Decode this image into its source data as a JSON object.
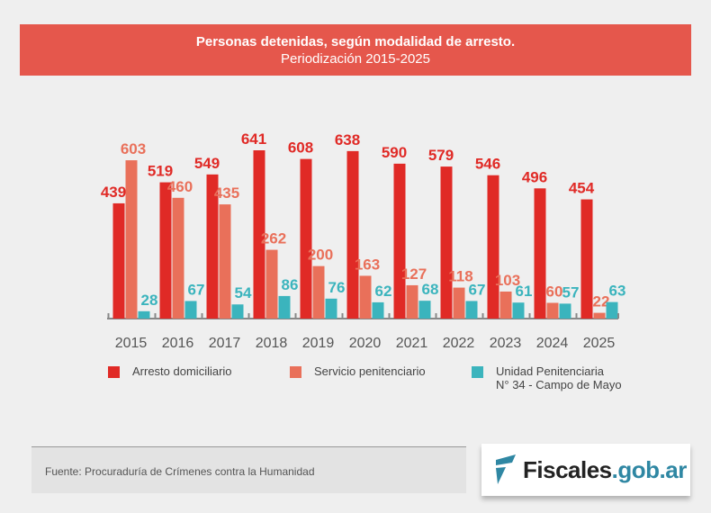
{
  "header": {
    "title": "Personas detenidas, según modalidad de arresto.",
    "subtitle": "Periodización 2015-2025"
  },
  "chart_data": {
    "type": "bar",
    "title": "Personas detenidas, según modalidad de arresto.",
    "subtitle": "Periodización 2015-2025",
    "categories": [
      "2015",
      "2016",
      "2017",
      "2018",
      "2019",
      "2020",
      "2021",
      "2022",
      "2023",
      "2024",
      "2025"
    ],
    "series": [
      {
        "name": "Arresto domiciliario",
        "color": "#e02a26",
        "values": [
          439,
          519,
          549,
          641,
          608,
          638,
          590,
          579,
          546,
          496,
          454
        ]
      },
      {
        "name": "Servicio penitenciario",
        "color": "#e9705a",
        "values": [
          603,
          460,
          435,
          262,
          200,
          163,
          127,
          118,
          103,
          60,
          22
        ]
      },
      {
        "name": "Unidad Penitenciaria N° 34 - Campo de Mayo",
        "color": "#3bb4bd",
        "values": [
          28,
          67,
          54,
          86,
          76,
          62,
          68,
          67,
          61,
          57,
          63
        ]
      }
    ],
    "ylim": [
      0,
      641
    ],
    "grid": false,
    "legend": "bottom",
    "data_labels": true
  },
  "legend": {
    "items": [
      {
        "line1": "Arresto domiciliario"
      },
      {
        "line1": "Servicio penitenciario"
      },
      {
        "line1": "Unidad Penitenciaria",
        "line2": "N° 34 - Campo de Mayo"
      }
    ]
  },
  "footer": {
    "source": "Fuente: Procuraduría de Crímenes contra la Humanidad",
    "logo_main": "Fiscales",
    "logo_suffix": ".gob.ar"
  }
}
